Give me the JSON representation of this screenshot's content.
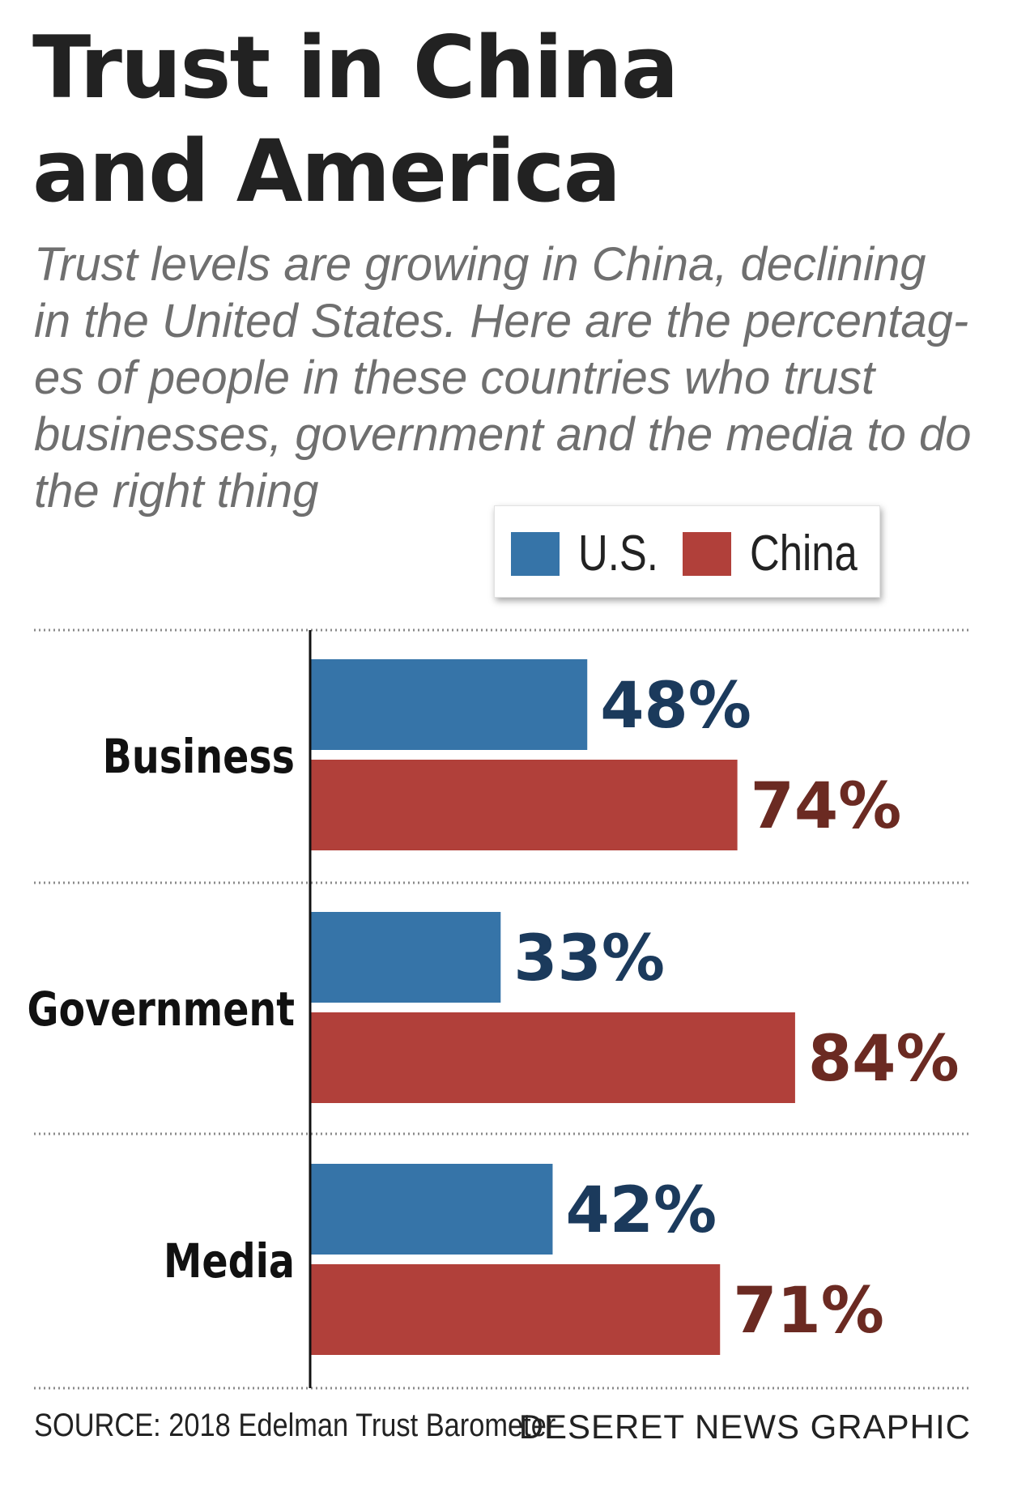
{
  "title": [
    "Trust in China",
    "and America"
  ],
  "subtitle_lines": [
    "Trust levels are growing in China, declining",
    "in the United States. Here are the percentag-",
    "es of people in these countries who trust",
    "businesses, government and the media to do",
    "the right thing"
  ],
  "legend": [
    {
      "label": "U.S.",
      "color": "#3674a8"
    },
    {
      "label": "China",
      "color": "#b1403a"
    }
  ],
  "chart_data": {
    "type": "bar",
    "orientation": "horizontal",
    "categories": [
      "Business",
      "Government",
      "Media"
    ],
    "series": [
      {
        "name": "U.S.",
        "values": [
          48,
          33,
          42
        ],
        "labels": [
          "48%",
          "33%",
          "42%"
        ],
        "color": "#3674a8",
        "label_color": "#1b3a5c"
      },
      {
        "name": "China",
        "values": [
          74,
          84,
          71
        ],
        "labels": [
          "74%",
          "84%",
          "71%"
        ],
        "color": "#b1403a",
        "label_color": "#6b2a22"
      }
    ],
    "xlim": [
      0,
      100
    ],
    "legend_position": "top-right",
    "grid": false
  },
  "footer": {
    "source": "SOURCE: 2018 Edelman Trust Barometer",
    "credit": "DESERET NEWS GRAPHIC"
  }
}
